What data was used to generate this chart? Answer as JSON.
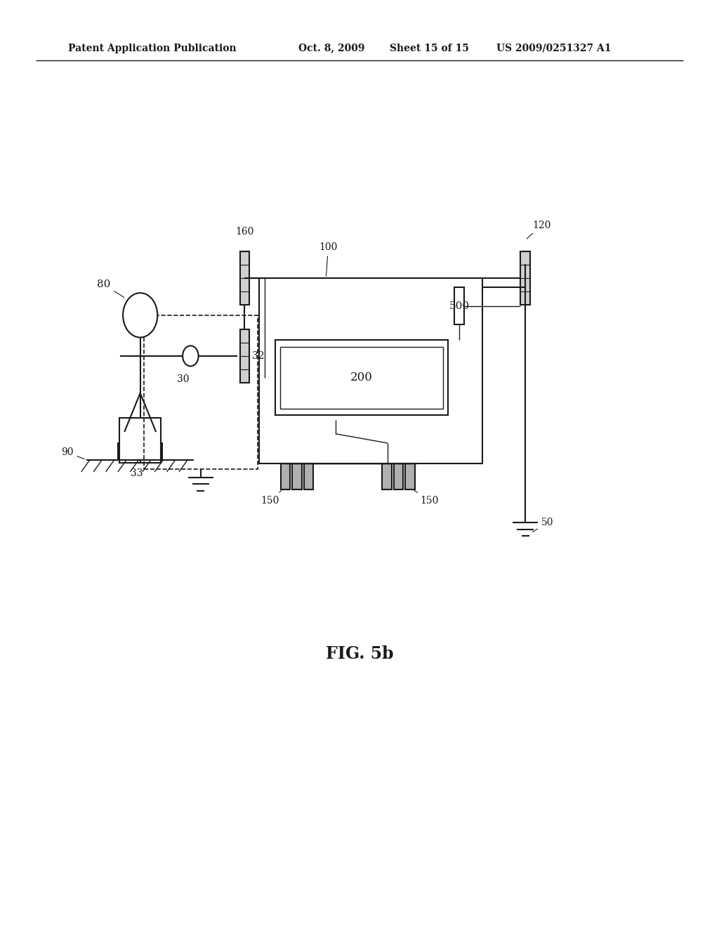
{
  "bg_color": "#ffffff",
  "line_color": "#1a1a1a",
  "header_text": "Patent Application Publication",
  "header_date": "Oct. 8, 2009",
  "header_sheet": "Sheet 15 of 15",
  "header_patent": "US 2009/0251327 A1",
  "fig_label": "FIG. 5b"
}
